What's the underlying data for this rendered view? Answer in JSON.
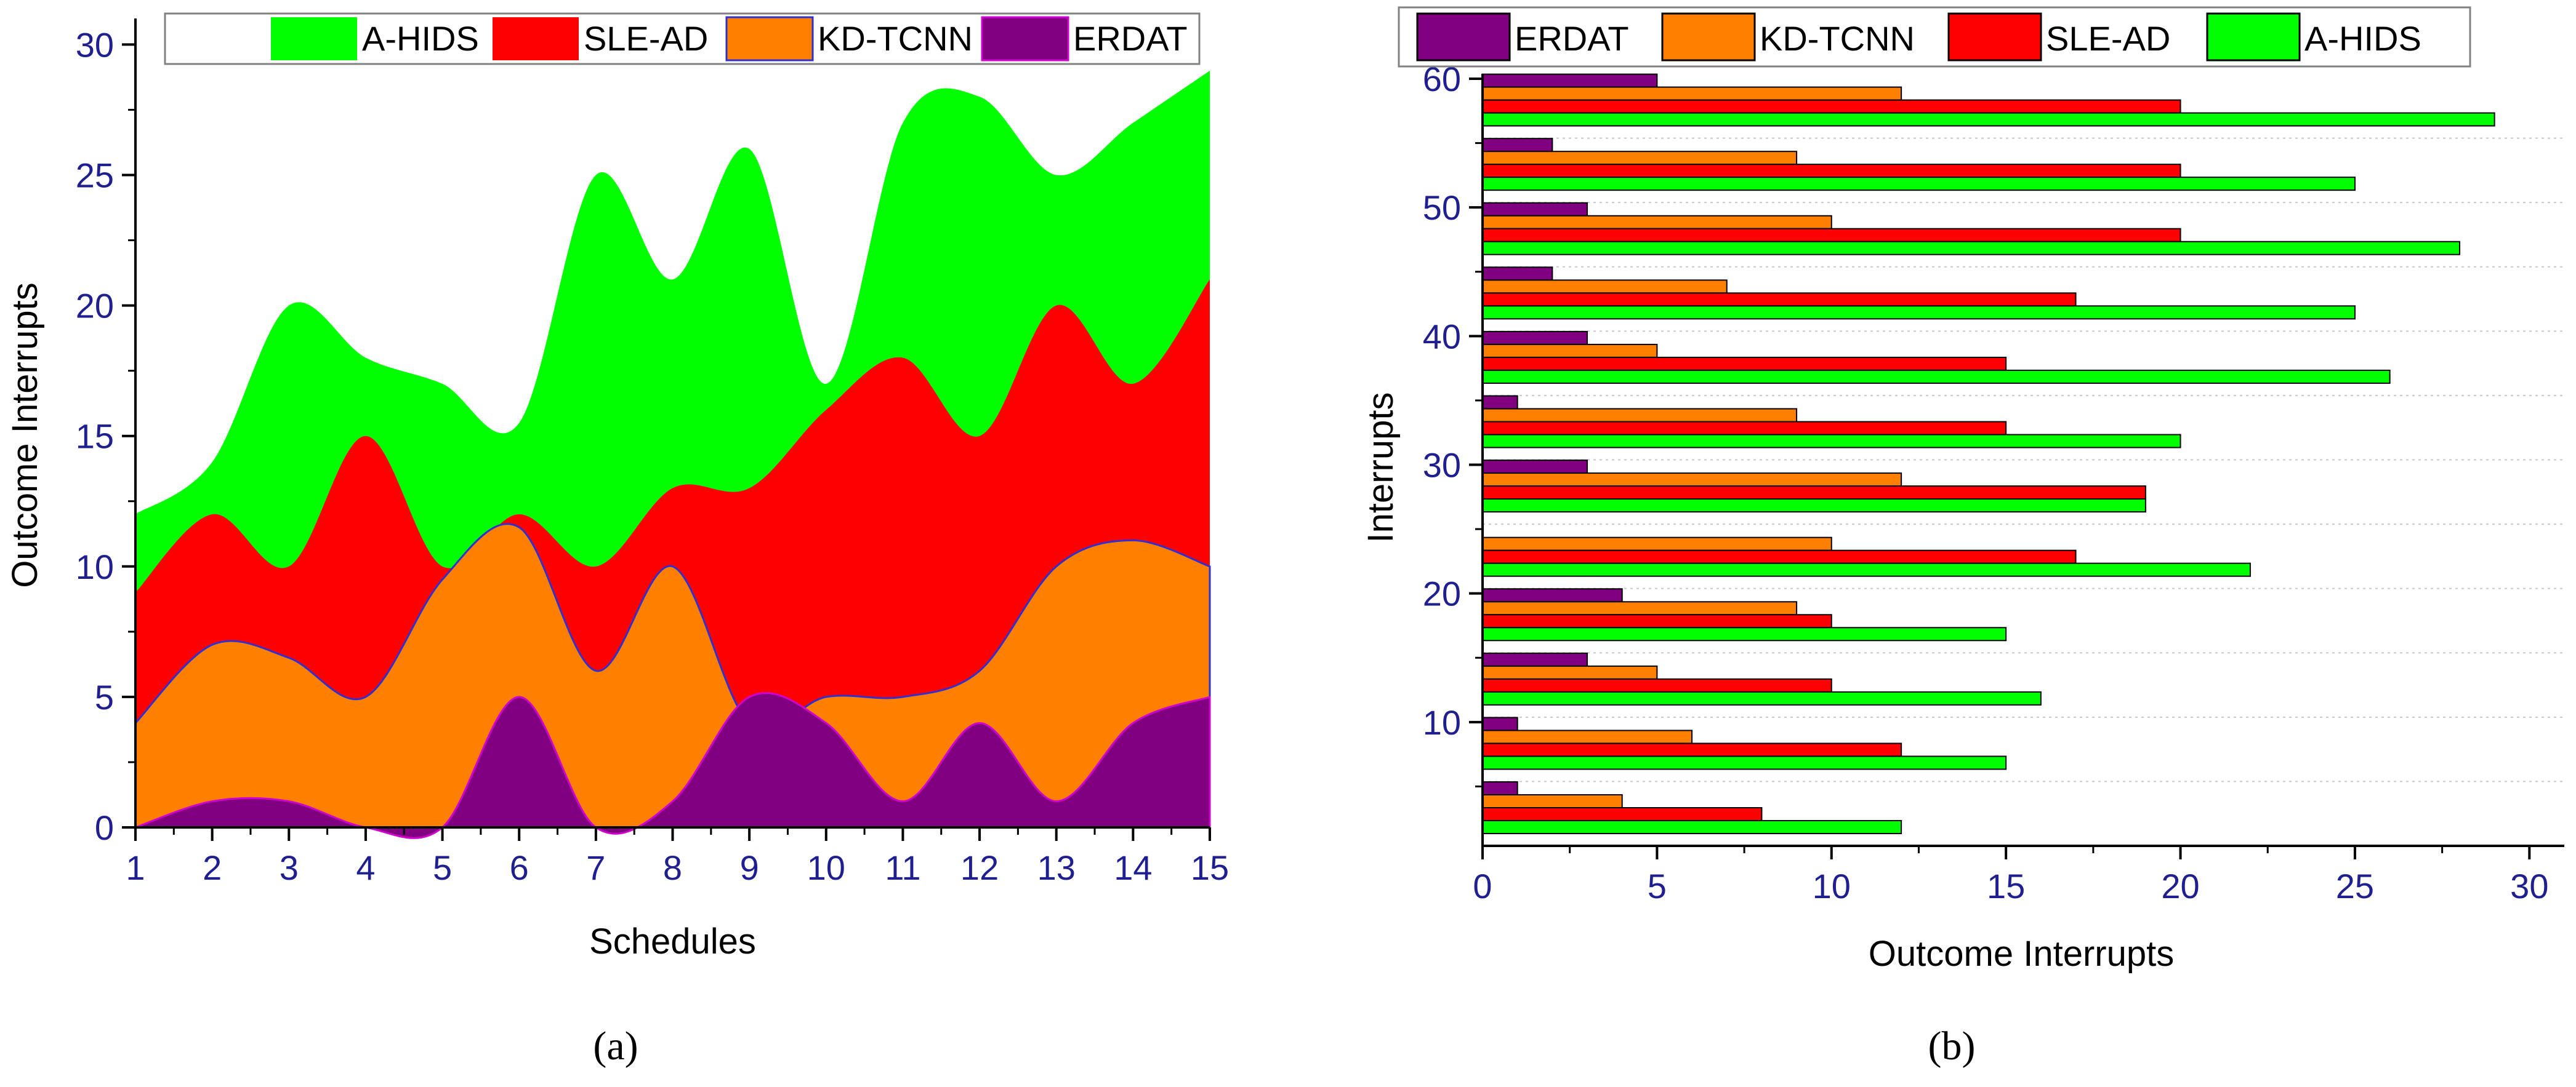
{
  "colors": {
    "A-HIDS": "#00ff00",
    "SLE-AD": "#ff0000",
    "KD-TCNN": "#ff8000",
    "ERDAT": "#800080",
    "tick_text": "#1f1f8f"
  },
  "chart_data": [
    {
      "type": "area",
      "panel": "(a)",
      "xlabel": "Schedules",
      "ylabel": "Outcome Interrupts",
      "xlim": [
        1,
        15
      ],
      "ylim": [
        0,
        31
      ],
      "x": [
        1,
        2,
        3,
        4,
        5,
        6,
        7,
        8,
        9,
        10,
        11,
        12,
        13,
        14,
        15
      ],
      "x_ticks": [
        "1",
        "2",
        "3",
        "4",
        "5",
        "6",
        "7",
        "8",
        "9",
        "10",
        "11",
        "12",
        "13",
        "14",
        "15"
      ],
      "y_ticks": [
        "0",
        "5",
        "10",
        "15",
        "20",
        "25",
        "30"
      ],
      "legend": [
        "A-HIDS",
        "SLE-AD",
        "KD-TCNN",
        "ERDAT"
      ],
      "series": [
        {
          "name": "A-HIDS",
          "values": [
            12,
            14,
            20,
            18,
            17,
            15.5,
            25,
            21,
            26,
            17,
            27,
            28,
            25,
            27,
            29
          ]
        },
        {
          "name": "SLE-AD",
          "values": [
            9,
            12,
            10,
            15,
            10,
            12,
            10,
            13,
            13,
            16,
            18,
            15,
            20,
            17,
            21
          ]
        },
        {
          "name": "KD-TCNN",
          "values": [
            4,
            7,
            6.5,
            5,
            9.5,
            11.5,
            6,
            10,
            4,
            5,
            5,
            6,
            10,
            11,
            10
          ]
        },
        {
          "name": "ERDAT",
          "values": [
            0,
            1,
            1,
            0,
            0,
            5,
            0,
            1,
            5,
            4,
            1,
            4,
            1,
            4,
            5
          ]
        }
      ]
    },
    {
      "type": "bar",
      "orientation": "horizontal",
      "panel": "(b)",
      "xlabel": "Outcome Interrupts",
      "ylabel": "Interrupts",
      "xlim": [
        0,
        31
      ],
      "x_ticks": [
        "0",
        "5",
        "10",
        "15",
        "20",
        "25",
        "30"
      ],
      "categories": [
        5,
        10,
        15,
        20,
        25,
        30,
        35,
        40,
        45,
        50,
        55,
        60
      ],
      "y_tick_labels": [
        "10",
        "20",
        "30",
        "40",
        "50",
        "60"
      ],
      "legend": [
        "ERDAT",
        "KD-TCNN",
        "SLE-AD",
        "A-HIDS"
      ],
      "series": [
        {
          "name": "ERDAT",
          "values": [
            1,
            1,
            3,
            4,
            0,
            3,
            1,
            3,
            2,
            3,
            2,
            5
          ]
        },
        {
          "name": "KD-TCNN",
          "values": [
            4,
            6,
            5,
            9,
            10,
            12,
            9,
            5,
            7,
            10,
            9,
            12
          ]
        },
        {
          "name": "SLE-AD",
          "values": [
            8,
            12,
            10,
            10,
            17,
            19,
            15,
            15,
            17,
            20,
            20,
            20
          ]
        },
        {
          "name": "A-HIDS",
          "values": [
            12,
            15,
            16,
            15,
            22,
            19,
            20,
            26,
            25,
            28,
            25,
            29
          ]
        }
      ]
    }
  ]
}
